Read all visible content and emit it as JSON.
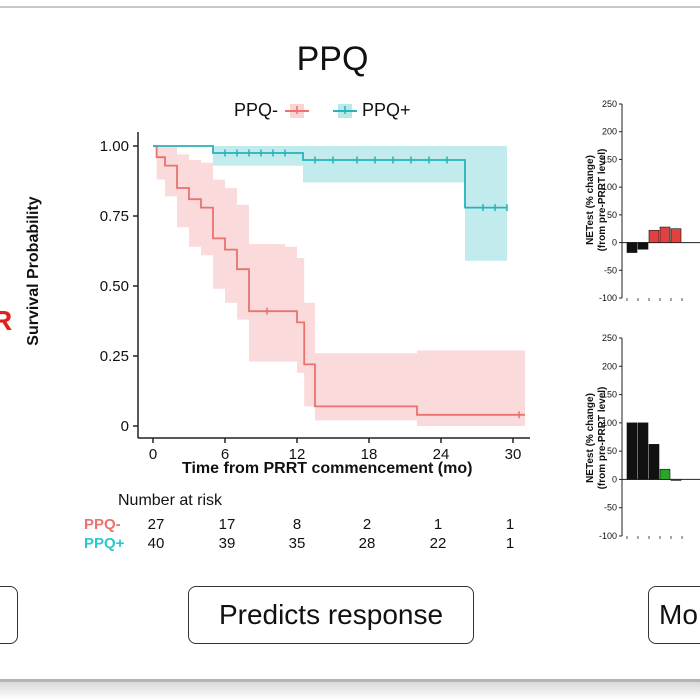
{
  "title": "PPQ",
  "left_fragment_text": "R",
  "pills": {
    "left": "",
    "center": "Predicts response",
    "right": "Mo"
  },
  "chart_data": [
    {
      "type": "line",
      "subtype": "kaplan-meier",
      "title": "PPQ",
      "xlabel": "Time from PRRT commencement (mo)",
      "ylabel": "Survival Probability",
      "xlim": [
        0,
        31
      ],
      "ylim": [
        0,
        1
      ],
      "xticks": [
        0,
        6,
        12,
        18,
        24,
        30
      ],
      "yticks": [
        "0",
        "0.25",
        "0.50",
        "0.75",
        "1.00"
      ],
      "ytick_values": [
        0,
        0.25,
        0.5,
        0.75,
        1
      ],
      "legend_placement": "top",
      "grid": false,
      "series": [
        {
          "name": "PPQ-",
          "color": "#e8736f",
          "band_color": "#f9d4d3",
          "steps": [
            [
              0,
              1.0
            ],
            [
              0.3,
              0.96
            ],
            [
              1,
              0.93
            ],
            [
              2,
              0.85
            ],
            [
              3,
              0.81
            ],
            [
              4,
              0.78
            ],
            [
              5,
              0.67
            ],
            [
              6,
              0.63
            ],
            [
              7,
              0.56
            ],
            [
              8,
              0.41
            ],
            [
              11,
              0.41
            ],
            [
              12,
              0.37
            ],
            [
              12.6,
              0.22
            ],
            [
              13.5,
              0.07
            ],
            [
              22,
              0.04
            ],
            [
              31,
              0.04
            ]
          ],
          "upper": [
            [
              0,
              1.0
            ],
            [
              0.3,
              1.0
            ],
            [
              1,
              1.0
            ],
            [
              2,
              0.97
            ],
            [
              3,
              0.95
            ],
            [
              4,
              0.94
            ],
            [
              5,
              0.88
            ],
            [
              6,
              0.85
            ],
            [
              7,
              0.79
            ],
            [
              8,
              0.65
            ],
            [
              11,
              0.64
            ],
            [
              12,
              0.6
            ],
            [
              12.6,
              0.44
            ],
            [
              13.5,
              0.26
            ],
            [
              22,
              0.27
            ],
            [
              31,
              0.27
            ]
          ],
          "lower": [
            [
              0,
              1.0
            ],
            [
              0.3,
              0.88
            ],
            [
              1,
              0.82
            ],
            [
              2,
              0.71
            ],
            [
              3,
              0.64
            ],
            [
              4,
              0.61
            ],
            [
              5,
              0.49
            ],
            [
              6,
              0.44
            ],
            [
              7,
              0.38
            ],
            [
              8,
              0.23
            ],
            [
              11,
              0.23
            ],
            [
              12,
              0.19
            ],
            [
              12.6,
              0.07
            ],
            [
              13.5,
              0.02
            ],
            [
              22,
              0.0
            ],
            [
              31,
              0.0
            ]
          ],
          "censor": [
            [
              9.5,
              0.41
            ],
            [
              30.5,
              0.04
            ]
          ]
        },
        {
          "name": "PPQ+",
          "color": "#27b3b9",
          "band_color": "#b7e8ea",
          "steps": [
            [
              0,
              1.0
            ],
            [
              5,
              0.975
            ],
            [
              12.5,
              0.95
            ],
            [
              26,
              0.78
            ],
            [
              29.5,
              0.78
            ]
          ],
          "upper": [
            [
              0,
              1.0
            ],
            [
              5,
              1.0
            ],
            [
              12.5,
              1.0
            ],
            [
              26,
              1.0
            ],
            [
              29.5,
              1.0
            ]
          ],
          "lower": [
            [
              0,
              1.0
            ],
            [
              5,
              0.93
            ],
            [
              12.5,
              0.87
            ],
            [
              26,
              0.59
            ],
            [
              29.5,
              0.59
            ]
          ],
          "censor": [
            [
              6,
              0.975
            ],
            [
              7,
              0.975
            ],
            [
              8,
              0.975
            ],
            [
              9,
              0.975
            ],
            [
              10,
              0.975
            ],
            [
              11,
              0.975
            ],
            [
              13.5,
              0.95
            ],
            [
              15,
              0.95
            ],
            [
              17,
              0.95
            ],
            [
              18.5,
              0.95
            ],
            [
              20,
              0.95
            ],
            [
              21.5,
              0.95
            ],
            [
              23,
              0.95
            ],
            [
              24.5,
              0.95
            ],
            [
              27.5,
              0.78
            ],
            [
              28.5,
              0.78
            ],
            [
              29.5,
              0.78
            ]
          ]
        }
      ],
      "risk_table": {
        "title": "Number at risk",
        "times": [
          0,
          6,
          12,
          18,
          24,
          30
        ],
        "rows": [
          {
            "name": "PPQ-",
            "values": [
              "27",
              "17",
              "8",
              "2",
              "1",
              "1"
            ]
          },
          {
            "name": "PPQ+",
            "values": [
              "40",
              "39",
              "35",
              "28",
              "22",
              "1"
            ]
          }
        ]
      }
    },
    {
      "type": "bar",
      "ylabel": "NETest (% change)\n(from pre-PRRT level)",
      "ylim": [
        -100,
        250
      ],
      "yticks": [
        "250",
        "200",
        "150",
        "100",
        "50",
        "0",
        "-50",
        "-100"
      ],
      "bars": [
        {
          "value": -18,
          "color": "#111111"
        },
        {
          "value": -12,
          "color": "#111111"
        },
        {
          "value": 22,
          "color": "#e0423f"
        },
        {
          "value": 28,
          "color": "#e0423f"
        },
        {
          "value": 25,
          "color": "#e0423f"
        }
      ]
    },
    {
      "type": "bar",
      "ylabel": "NETest (% change)\n(from pre-PRRT level)",
      "ylim": [
        -100,
        250
      ],
      "yticks": [
        "250",
        "200",
        "150",
        "100",
        "50",
        "0",
        "-50",
        "-100"
      ],
      "bars": [
        {
          "value": 100,
          "color": "#111111"
        },
        {
          "value": 100,
          "color": "#111111"
        },
        {
          "value": 62,
          "color": "#111111"
        },
        {
          "value": 18,
          "color": "#2aa52a"
        },
        {
          "value": 0,
          "color": "#2aa52a"
        }
      ]
    }
  ]
}
